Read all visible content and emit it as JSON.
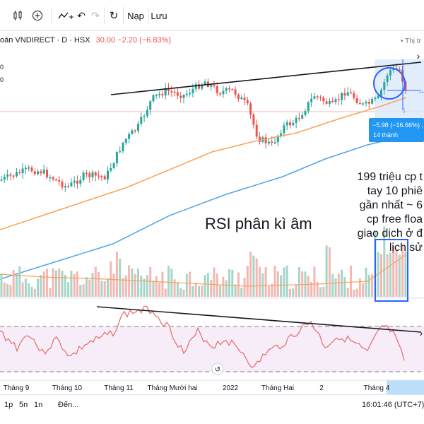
{
  "toolbar": {
    "items": [
      {
        "name": "chart-type-icon",
        "glyph": "⫶"
      },
      {
        "name": "add-indicator-icon",
        "glyph": "⊕"
      },
      {
        "name": "compare-icon",
        "glyph": "∿+"
      },
      {
        "name": "undo-icon",
        "glyph": "↶"
      },
      {
        "name": "redo-icon",
        "glyph": "↷"
      },
      {
        "name": "reload-icon",
        "glyph": "↻"
      }
    ],
    "load_label": "Nạp",
    "save_label": "Lưu"
  },
  "legend": {
    "symbol": "oán VNDIRECT · D · HSX",
    "values": "30.00  −2.20 (−6.83%)"
  },
  "corner_label": "• Thị tr",
  "measure": {
    "line1": "−5.98 (−16.66%) , ...",
    "line2": "14 thành"
  },
  "annotations": {
    "rsi_text": "RSI phân kì âm",
    "volume_note": [
      "199 triệu cp t",
      "tay 10 phiê",
      "gần nhất ~ 6",
      "cp free floa",
      "giao dịch ở đ",
      "lịch sử"
    ]
  },
  "colors": {
    "up": "#26a69a",
    "down": "#ef5350",
    "ma_slow": "#f7a35c",
    "ma_fast": "#4fa3e8",
    "rsi_line": "#e57373",
    "rsi_band": "#f3e5f5",
    "highlight": "#2962ff"
  },
  "chart_data": {
    "type": "candlestick",
    "title": "VNDIRECT · D · HSX",
    "x_ticks": [
      "Tháng 9",
      "Tháng 10",
      "Tháng 11",
      "Tháng Mười hai",
      "2022",
      "Tháng Hai",
      "2",
      "Tháng 4"
    ],
    "last_close": 30.0,
    "change": -2.2,
    "change_pct": -6.83,
    "indicators": [
      "price",
      "volume",
      "moving average (slow)",
      "moving average (fast)",
      "RSI"
    ],
    "rsi_note": "RSI phân kì âm"
  },
  "bottom": {
    "ranges": [
      "1p",
      "5n",
      "1n"
    ],
    "goto_label": "Đến...",
    "clock": "16:01:46 (UTC+7)"
  }
}
